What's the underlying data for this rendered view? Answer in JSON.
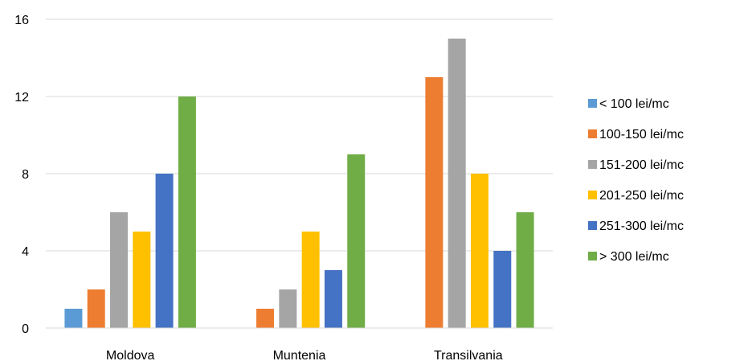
{
  "chart_data": {
    "type": "bar",
    "title": "",
    "xlabel": "",
    "ylabel": "",
    "categories": [
      "Moldova",
      "Muntenia",
      "Transilvania"
    ],
    "ylim": [
      0,
      16
    ],
    "yticks": [
      0,
      4,
      8,
      12,
      16
    ],
    "grid": true,
    "legend_position": "right",
    "series": [
      {
        "name": "< 100 lei/mc",
        "color": "#5B9BD5",
        "values": [
          1,
          0,
          0
        ]
      },
      {
        "name": "100-150 lei/mc",
        "color": "#ED7D31",
        "values": [
          2,
          1,
          13
        ]
      },
      {
        "name": "151-200 lei/mc",
        "color": "#A5A5A5",
        "values": [
          6,
          2,
          15
        ]
      },
      {
        "name": "201-250 lei/mc",
        "color": "#FFC000",
        "values": [
          5,
          5,
          8
        ]
      },
      {
        "name": "251-300 lei/mc",
        "color": "#4472C4",
        "values": [
          8,
          3,
          4
        ]
      },
      {
        "name": "> 300 lei/mc",
        "color": "#70AD47",
        "values": [
          12,
          9,
          6
        ]
      }
    ]
  }
}
